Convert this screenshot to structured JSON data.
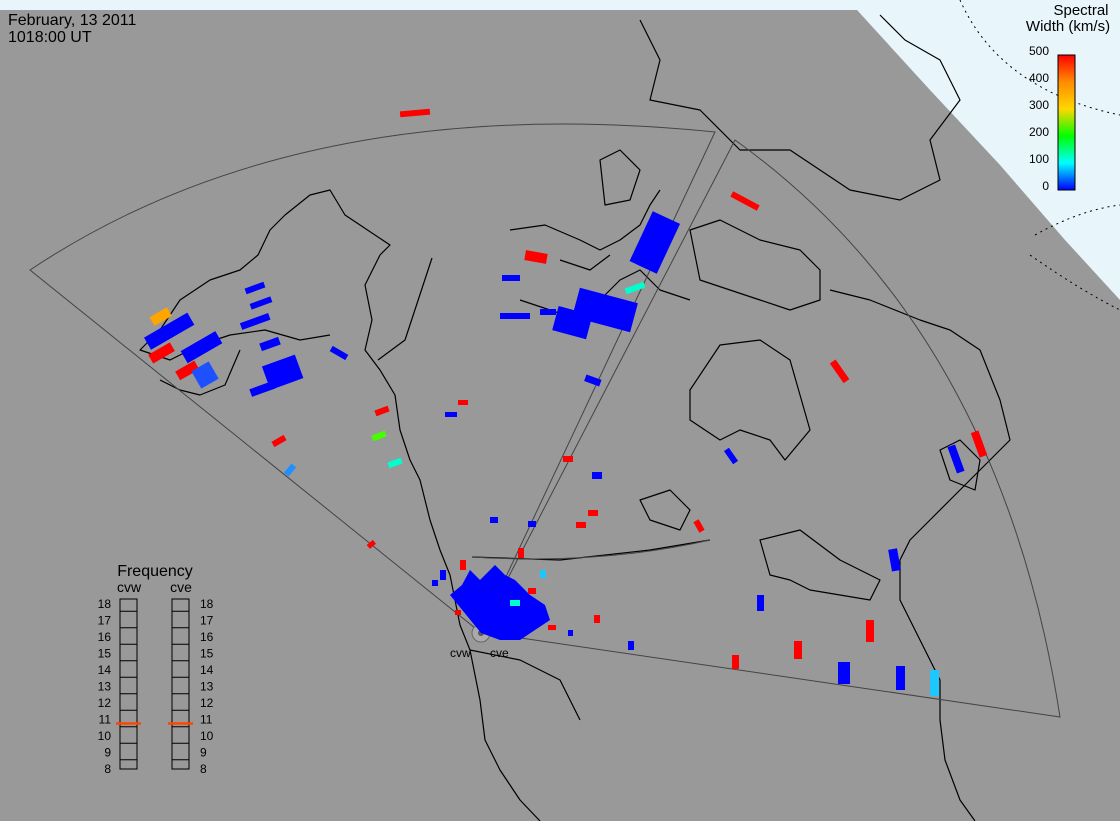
{
  "header": {
    "date": "February, 13 2011",
    "time": "1018:00 UT"
  },
  "colorbar": {
    "title_line1": "Spectral",
    "title_line2": "Width (km/s)",
    "ticks": [
      "500",
      "400",
      "300",
      "200",
      "100",
      "0"
    ],
    "gradient": [
      "#ff0000",
      "#ff8c00",
      "#ffd700",
      "#00ff00",
      "#00ffff",
      "#0000ff"
    ]
  },
  "frequency_panel": {
    "title": "Frequency",
    "left_label": "cvw",
    "right_label": "cve",
    "ticks": [
      "18",
      "17",
      "16",
      "15",
      "14",
      "13",
      "12",
      "11",
      "10",
      "9",
      "8"
    ],
    "cvw_frequency_mhz": 10.7,
    "cve_frequency_mhz": 10.7,
    "marker_color": "#ff4500"
  },
  "radars": {
    "west_label": "cvw",
    "east_label": "cve"
  },
  "colors": {
    "ocean": "#e8f6fc",
    "land": "#999999",
    "coast": "#000000",
    "fov": "#444444"
  }
}
